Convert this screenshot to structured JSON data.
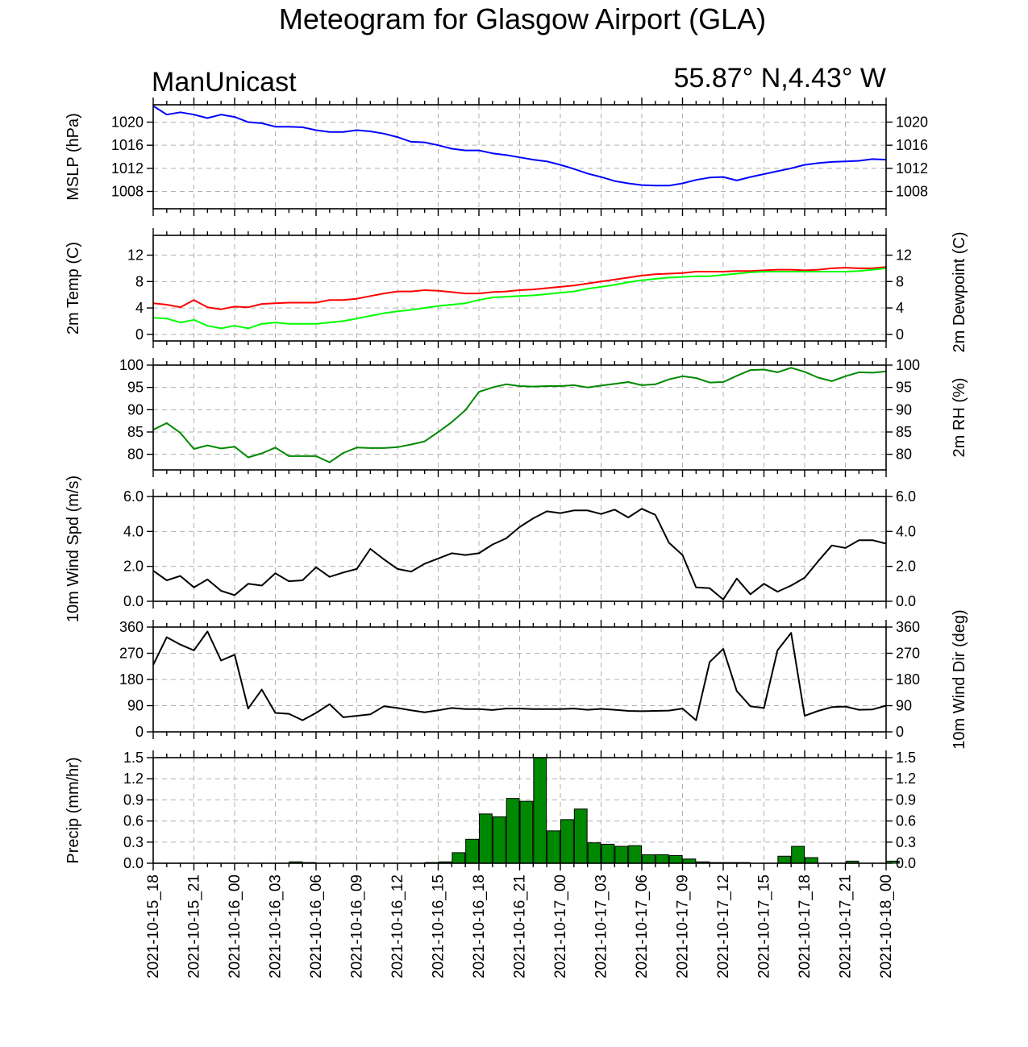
{
  "title": "Meteogram for Glasgow Airport (GLA)",
  "source_label": "ManUnicast",
  "location_label": "55.87° N,4.43° W",
  "colors": {
    "mslp": "#0000ff",
    "temp": "#ff0000",
    "dewpoint": "#00ff00",
    "rh": "#008800",
    "wind": "#000000",
    "precip_fill": "#008800",
    "grid": "#b0b0b0"
  },
  "chart_data": [
    {
      "type": "line",
      "id": "mslp",
      "ylabel": "MSLP (hPa)",
      "ylim": [
        1005,
        1023
      ],
      "yticks": [
        1008,
        1012,
        1016,
        1020
      ],
      "tick_labels": [
        "1008",
        "1012",
        "1016",
        "1020"
      ],
      "right_ticks": true,
      "series": [
        {
          "name": "MSLP",
          "color": "#0000ff",
          "x": [
            0,
            1,
            2,
            3,
            4,
            5,
            6,
            7,
            8,
            9,
            10,
            11,
            12,
            13,
            14,
            15,
            16,
            17,
            18,
            19,
            20,
            21,
            22,
            23,
            24,
            25,
            26,
            27,
            28,
            29,
            30,
            31,
            32,
            33,
            34,
            35,
            36,
            37,
            38,
            39,
            40,
            41,
            42,
            43,
            44,
            45,
            46,
            47,
            48,
            49,
            50,
            51,
            52,
            53,
            54
          ],
          "values": [
            1022.8,
            1021.3,
            1021.7,
            1021.3,
            1020.7,
            1021.3,
            1020.9,
            1020.0,
            1019.8,
            1019.2,
            1019.2,
            1019.1,
            1018.6,
            1018.3,
            1018.3,
            1018.6,
            1018.4,
            1018.0,
            1017.4,
            1016.6,
            1016.5,
            1016.0,
            1015.4,
            1015.1,
            1015.1,
            1014.6,
            1014.3,
            1013.9,
            1013.5,
            1013.2,
            1012.6,
            1011.9,
            1011.1,
            1010.5,
            1009.8,
            1009.4,
            1009.1,
            1009.0,
            1009.0,
            1009.4,
            1010.0,
            1010.4,
            1010.5,
            1009.9,
            1010.5,
            1011.0,
            1011.5,
            1012.0,
            1012.6,
            1012.9,
            1013.1,
            1013.2,
            1013.3,
            1013.6,
            1013.5
          ]
        }
      ]
    },
    {
      "type": "line",
      "id": "temp",
      "ylabel": "2m Temp (C)",
      "ylabel_right": "2m Dewpoint (C)",
      "ylim": [
        -1,
        15
      ],
      "yticks": [
        0,
        4,
        8,
        12
      ],
      "tick_labels": [
        "0",
        "4",
        "8",
        "12"
      ],
      "right_ticks": true,
      "series": [
        {
          "name": "2m Temp",
          "color": "#ff0000",
          "x": [
            0,
            1,
            2,
            3,
            4,
            5,
            6,
            7,
            8,
            9,
            10,
            11,
            12,
            13,
            14,
            15,
            16,
            17,
            18,
            19,
            20,
            21,
            22,
            23,
            24,
            25,
            26,
            27,
            28,
            29,
            30,
            31,
            32,
            33,
            34,
            35,
            36,
            37,
            38,
            39,
            40,
            41,
            42,
            43,
            44,
            45,
            46,
            47,
            48,
            49,
            50,
            51,
            52,
            53,
            54
          ],
          "values": [
            4.7,
            4.5,
            4.1,
            5.2,
            4.1,
            3.8,
            4.2,
            4.1,
            4.6,
            4.7,
            4.8,
            4.8,
            4.8,
            5.2,
            5.2,
            5.4,
            5.8,
            6.2,
            6.5,
            6.5,
            6.7,
            6.6,
            6.4,
            6.2,
            6.2,
            6.4,
            6.5,
            6.7,
            6.8,
            7.0,
            7.2,
            7.4,
            7.7,
            8.0,
            8.3,
            8.6,
            8.9,
            9.1,
            9.2,
            9.3,
            9.5,
            9.5,
            9.5,
            9.6,
            9.6,
            9.7,
            9.8,
            9.8,
            9.7,
            9.8,
            10.0,
            10.1,
            10.0,
            10.0,
            10.2
          ]
        },
        {
          "name": "2m Dewpoint",
          "color": "#00ff00",
          "x": [
            0,
            1,
            2,
            3,
            4,
            5,
            6,
            7,
            8,
            9,
            10,
            11,
            12,
            13,
            14,
            15,
            16,
            17,
            18,
            19,
            20,
            21,
            22,
            23,
            24,
            25,
            26,
            27,
            28,
            29,
            30,
            31,
            32,
            33,
            34,
            35,
            36,
            37,
            38,
            39,
            40,
            41,
            42,
            43,
            44,
            45,
            46,
            47,
            48,
            49,
            50,
            51,
            52,
            53,
            54
          ],
          "values": [
            2.5,
            2.4,
            1.8,
            2.2,
            1.3,
            0.9,
            1.3,
            0.9,
            1.6,
            1.8,
            1.6,
            1.6,
            1.6,
            1.8,
            2.0,
            2.4,
            2.8,
            3.2,
            3.5,
            3.7,
            4.0,
            4.3,
            4.5,
            4.7,
            5.2,
            5.6,
            5.7,
            5.8,
            5.9,
            6.1,
            6.3,
            6.5,
            6.9,
            7.2,
            7.5,
            7.9,
            8.2,
            8.4,
            8.6,
            8.7,
            8.8,
            8.8,
            9.0,
            9.2,
            9.4,
            9.5,
            9.5,
            9.5,
            9.5,
            9.5,
            9.5,
            9.5,
            9.6,
            9.8,
            10.0
          ]
        }
      ]
    },
    {
      "type": "line",
      "id": "rh",
      "ylabel": "2m RH (%)",
      "label_side": "right",
      "ylim": [
        76.5,
        100
      ],
      "yticks": [
        80,
        85,
        90,
        95,
        100
      ],
      "tick_labels": [
        "80",
        "85",
        "90",
        "95",
        "100"
      ],
      "right_ticks": true,
      "series": [
        {
          "name": "2m RH",
          "color": "#008800",
          "x": [
            0,
            1,
            2,
            3,
            4,
            5,
            6,
            7,
            8,
            9,
            10,
            11,
            12,
            13,
            14,
            15,
            16,
            17,
            18,
            19,
            20,
            21,
            22,
            23,
            24,
            25,
            26,
            27,
            28,
            29,
            30,
            31,
            32,
            33,
            34,
            35,
            36,
            37,
            38,
            39,
            40,
            41,
            42,
            43,
            44,
            45,
            46,
            47,
            48,
            49,
            50,
            51,
            52,
            53,
            54
          ],
          "values": [
            85.5,
            87.0,
            84.8,
            81.2,
            82.0,
            81.3,
            81.7,
            79.3,
            80.2,
            81.5,
            79.6,
            79.6,
            79.6,
            78.2,
            80.3,
            81.5,
            81.4,
            81.4,
            81.6,
            82.2,
            82.9,
            85.0,
            87.2,
            89.9,
            94.0,
            95.0,
            95.7,
            95.3,
            95.2,
            95.3,
            95.3,
            95.5,
            95.0,
            95.4,
            95.8,
            96.2,
            95.5,
            95.7,
            96.8,
            97.5,
            97.1,
            96.1,
            96.2,
            97.6,
            98.9,
            99.0,
            98.4,
            99.4,
            98.5,
            97.2,
            96.4,
            97.5,
            98.4,
            98.3,
            98.6
          ]
        }
      ]
    },
    {
      "type": "line",
      "id": "wind_speed",
      "ylabel": "10m Wind Spd (m/s)",
      "ylim": [
        0,
        6
      ],
      "yticks": [
        0,
        2,
        4,
        6
      ],
      "tick_labels": [
        "0.0",
        "2.0",
        "4.0",
        "6.0"
      ],
      "right_ticks": true,
      "series": [
        {
          "name": "10m Wind Speed",
          "color": "#000000",
          "x": [
            0,
            1,
            2,
            3,
            4,
            5,
            6,
            7,
            8,
            9,
            10,
            11,
            12,
            13,
            14,
            15,
            16,
            17,
            18,
            19,
            20,
            21,
            22,
            23,
            24,
            25,
            26,
            27,
            28,
            29,
            30,
            31,
            32,
            33,
            34,
            35,
            36,
            37,
            38,
            39,
            40,
            41,
            42,
            43,
            44,
            45,
            46,
            47,
            48,
            49,
            50,
            51,
            52,
            53,
            54
          ],
          "values": [
            1.75,
            1.2,
            1.45,
            0.8,
            1.25,
            0.6,
            0.35,
            1.0,
            0.9,
            1.6,
            1.15,
            1.2,
            1.95,
            1.4,
            1.65,
            1.85,
            3.0,
            2.4,
            1.85,
            1.7,
            2.15,
            2.45,
            2.75,
            2.65,
            2.75,
            3.25,
            3.6,
            4.25,
            4.75,
            5.15,
            5.05,
            5.2,
            5.2,
            5.0,
            5.25,
            4.8,
            5.3,
            4.95,
            3.35,
            2.65,
            0.8,
            0.75,
            0.1,
            1.3,
            0.4,
            1.0,
            0.55,
            0.9,
            1.35,
            2.3,
            3.2,
            3.05,
            3.5,
            3.5,
            3.3
          ]
        }
      ]
    },
    {
      "type": "line",
      "id": "wind_dir",
      "ylabel": "10m Wind Dir (deg)",
      "label_side": "right",
      "ylim": [
        0,
        360
      ],
      "yticks": [
        0,
        90,
        180,
        270,
        360
      ],
      "tick_labels": [
        "0",
        "90",
        "180",
        "270",
        "360"
      ],
      "right_ticks": true,
      "series": [
        {
          "name": "10m Wind Direction",
          "color": "#000000",
          "x": [
            0,
            1,
            2,
            3,
            4,
            5,
            6,
            7,
            8,
            9,
            10,
            11,
            12,
            13,
            14,
            15,
            16,
            17,
            18,
            19,
            20,
            21,
            22,
            23,
            24,
            25,
            26,
            27,
            28,
            29,
            30,
            31,
            32,
            33,
            34,
            35,
            36,
            37,
            38,
            39,
            40,
            41,
            42,
            43,
            44,
            45,
            46,
            47,
            48,
            49,
            50,
            51,
            52,
            53,
            54
          ],
          "values": [
            230,
            325,
            300,
            280,
            345,
            245,
            265,
            80,
            145,
            65,
            62,
            40,
            65,
            95,
            50,
            55,
            60,
            88,
            82,
            74,
            67,
            74,
            82,
            78,
            78,
            75,
            80,
            80,
            78,
            78,
            78,
            80,
            76,
            79,
            76,
            72,
            71,
            72,
            73,
            80,
            40,
            240,
            285,
            140,
            88,
            82,
            280,
            340,
            55,
            72,
            85,
            87,
            76,
            77,
            90
          ]
        }
      ]
    },
    {
      "type": "bar",
      "id": "precip",
      "ylabel": "Precip (mm/hr)",
      "ylim": [
        0,
        1.5
      ],
      "yticks": [
        0,
        0.3,
        0.6,
        0.9,
        1.2,
        1.5
      ],
      "tick_labels": [
        "0.0",
        "0.3",
        "0.6",
        "0.9",
        "1.2",
        "1.5"
      ],
      "right_ticks": true,
      "series": [
        {
          "name": "Precip",
          "color": "#008800",
          "x": [
            0,
            1,
            2,
            3,
            4,
            5,
            6,
            7,
            8,
            9,
            10,
            11,
            12,
            13,
            14,
            15,
            16,
            17,
            18,
            19,
            20,
            21,
            22,
            23,
            24,
            25,
            26,
            27,
            28,
            29,
            30,
            31,
            32,
            33,
            34,
            35,
            36,
            37,
            38,
            39,
            40,
            41,
            42,
            43,
            44,
            45,
            46,
            47,
            48,
            49,
            50,
            51,
            52,
            53,
            54
          ],
          "values": [
            0,
            0,
            0,
            0,
            0,
            0,
            0,
            0,
            0,
            0,
            0.02,
            0.01,
            0,
            0,
            0,
            0,
            0,
            0,
            0,
            0,
            0.01,
            0.02,
            0.15,
            0.34,
            0.7,
            0.66,
            0.92,
            0.88,
            1.5,
            0.46,
            0.62,
            0.77,
            0.29,
            0.27,
            0.24,
            0.25,
            0.12,
            0.12,
            0.11,
            0.06,
            0.02,
            0.01,
            0.01,
            0.01,
            0,
            0,
            0.1,
            0.24,
            0.08,
            0,
            0,
            0.03,
            0,
            0,
            0.03
          ]
        }
      ]
    }
  ],
  "x_axis": {
    "ticks": [
      0,
      3,
      6,
      9,
      12,
      15,
      18,
      21,
      24,
      27,
      30,
      33,
      36,
      39,
      42,
      45,
      48,
      51,
      54
    ],
    "labels": [
      "2021-10-15_18",
      "2021-10-15_21",
      "2021-10-16_00",
      "2021-10-16_03",
      "2021-10-16_06",
      "2021-10-16_09",
      "2021-10-16_12",
      "2021-10-16_15",
      "2021-10-16_18",
      "2021-10-16_21",
      "2021-10-17_00",
      "2021-10-17_03",
      "2021-10-17_06",
      "2021-10-17_09",
      "2021-10-17_12",
      "2021-10-17_15",
      "2021-10-17_18",
      "2021-10-17_21",
      "2021-10-18_00"
    ],
    "range": [
      0,
      54
    ]
  }
}
